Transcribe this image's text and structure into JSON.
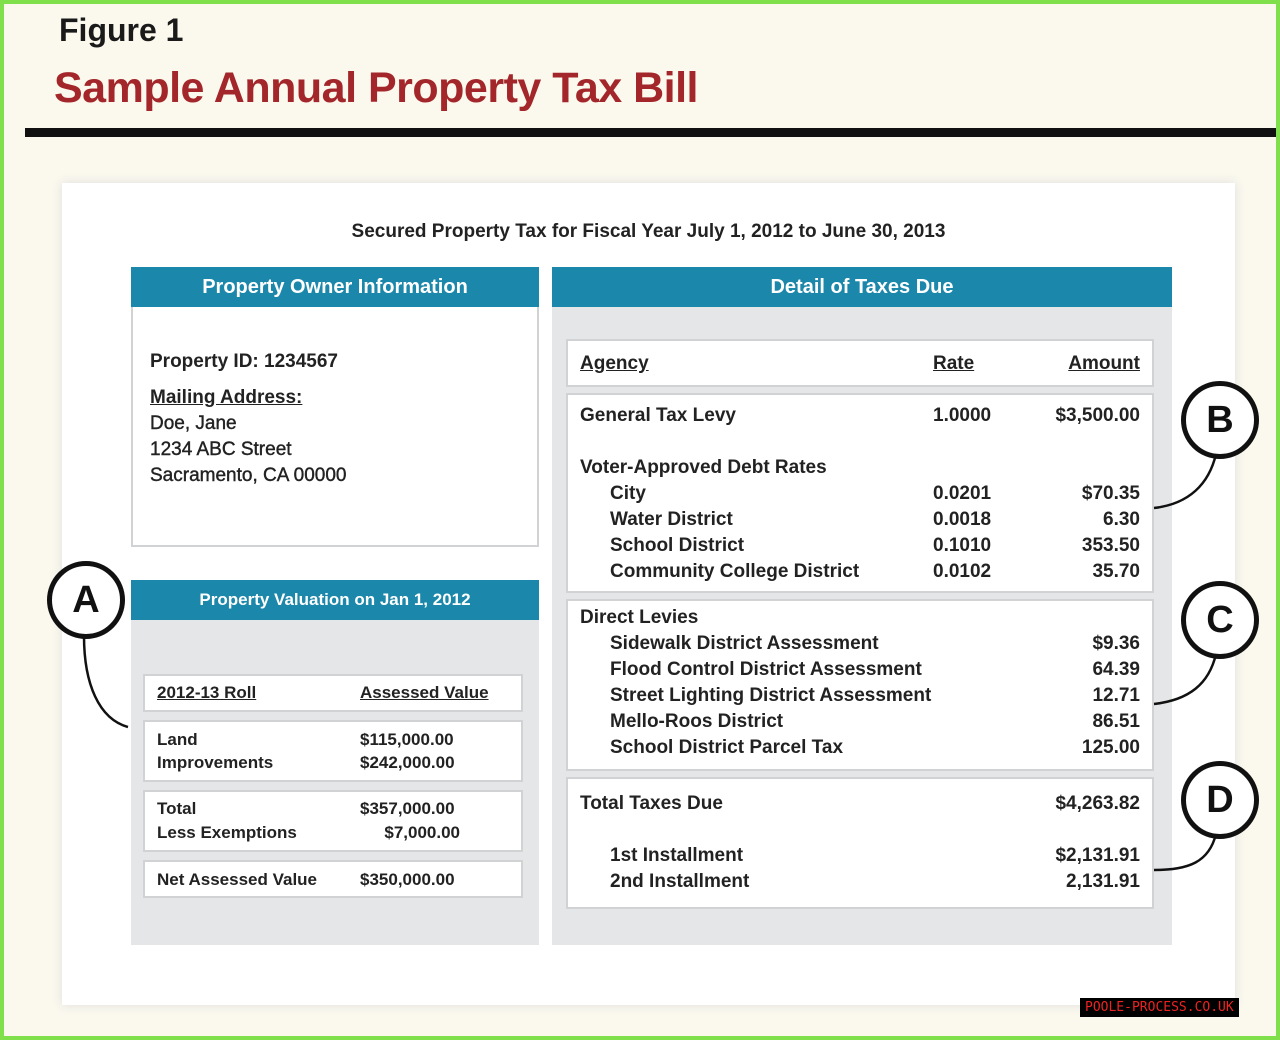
{
  "header": {
    "figure": "Figure 1",
    "title": "Sample Annual Property Tax Bill"
  },
  "bill": {
    "heading": "Secured Property Tax for Fiscal Year July 1, 2012 to June 30, 2013",
    "owner": {
      "header": "Property Owner Information",
      "property_id": "Property ID: 1234567",
      "mailing_label": "Mailing Address:",
      "name": "Doe, Jane",
      "street": "1234 ABC Street",
      "city": "Sacramento, CA 00000"
    },
    "valuation": {
      "header": "Property Valuation on Jan 1, 2012",
      "col1": "2012-13 Roll",
      "col2": "Assessed Value",
      "rows": [
        {
          "label": "Land",
          "value": "$115,000.00"
        },
        {
          "label": "Improvements",
          "value": "$242,000.00"
        },
        {
          "label": "Total",
          "value": "$357,000.00"
        },
        {
          "label": "Less Exemptions",
          "value": "$7,000.00"
        },
        {
          "label": "Net Assessed Value",
          "value": "$350,000.00"
        }
      ]
    },
    "detail": {
      "header": "Detail of Taxes Due",
      "col_agency": "Agency",
      "col_rate": "Rate",
      "col_amount": "Amount",
      "general": {
        "label": "General Tax Levy",
        "rate": "1.0000",
        "amount": "$3,500.00"
      },
      "voter_label": "Voter-Approved Debt Rates",
      "voter": [
        {
          "label": "City",
          "rate": "0.0201",
          "amount": "$70.35"
        },
        {
          "label": "Water District",
          "rate": "0.0018",
          "amount": "6.30"
        },
        {
          "label": "School District",
          "rate": "0.1010",
          "amount": "353.50"
        },
        {
          "label": "Community College District",
          "rate": "0.0102",
          "amount": "35.70"
        }
      ],
      "direct_label": "Direct Levies",
      "direct": [
        {
          "label": "Sidewalk District Assessment",
          "amount": "$9.36"
        },
        {
          "label": "Flood Control District Assessment",
          "amount": "64.39"
        },
        {
          "label": "Street Lighting District Assessment",
          "amount": "12.71"
        },
        {
          "label": "Mello-Roos District",
          "amount": "86.51"
        },
        {
          "label": "School District Parcel Tax",
          "amount": "125.00"
        }
      ],
      "total_label": "Total Taxes Due",
      "total": "$4,263.82",
      "inst": [
        {
          "label": "1st Installment",
          "amount": "$2,131.91"
        },
        {
          "label": "2nd Installment",
          "amount": "2,131.91"
        }
      ]
    }
  },
  "callouts": [
    "A",
    "B",
    "C",
    "D"
  ],
  "watermark": "POOLE-PROCESS.CO.UK",
  "colors": {
    "accent": "#1b87aa",
    "title": "#a3272a",
    "border": "#7fe04c"
  }
}
